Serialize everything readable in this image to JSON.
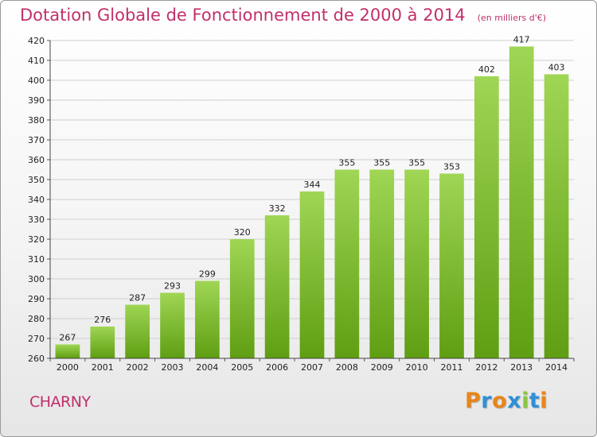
{
  "chart_data": {
    "type": "bar",
    "title": "Dotation Globale de Fonctionnement de 2000 à 2014",
    "subtitle": "(en milliers d'€)",
    "xlabel": "",
    "ylabel": "",
    "categories": [
      "2000",
      "2001",
      "2002",
      "2003",
      "2004",
      "2005",
      "2006",
      "2007",
      "2008",
      "2009",
      "2010",
      "2011",
      "2012",
      "2013",
      "2014"
    ],
    "values": [
      267,
      276,
      287,
      293,
      299,
      320,
      332,
      344,
      355,
      355,
      355,
      353,
      402,
      417,
      403
    ],
    "ylim": [
      260,
      420
    ],
    "yticks": [
      260,
      270,
      280,
      290,
      300,
      310,
      320,
      330,
      340,
      350,
      360,
      370,
      380,
      390,
      400,
      410,
      420
    ],
    "grid": true,
    "legend": "none",
    "colors": {
      "bar_top": "#9fd655",
      "bar_bottom": "#5f9e12",
      "title": "#c0306b",
      "grid": "#cfcfcf"
    }
  },
  "footer": {
    "commune": "CHARNY",
    "logo_letters": [
      {
        "ch": "P",
        "color": "#e8851a"
      },
      {
        "ch": "r",
        "color": "#2f8fd8"
      },
      {
        "ch": "o",
        "color": "#e8851a"
      },
      {
        "ch": "x",
        "color": "#2f8fd8"
      },
      {
        "ch": "i",
        "color": "#8cc63f"
      },
      {
        "ch": "t",
        "color": "#2f8fd8"
      },
      {
        "ch": "i",
        "color": "#e8851a"
      }
    ]
  }
}
